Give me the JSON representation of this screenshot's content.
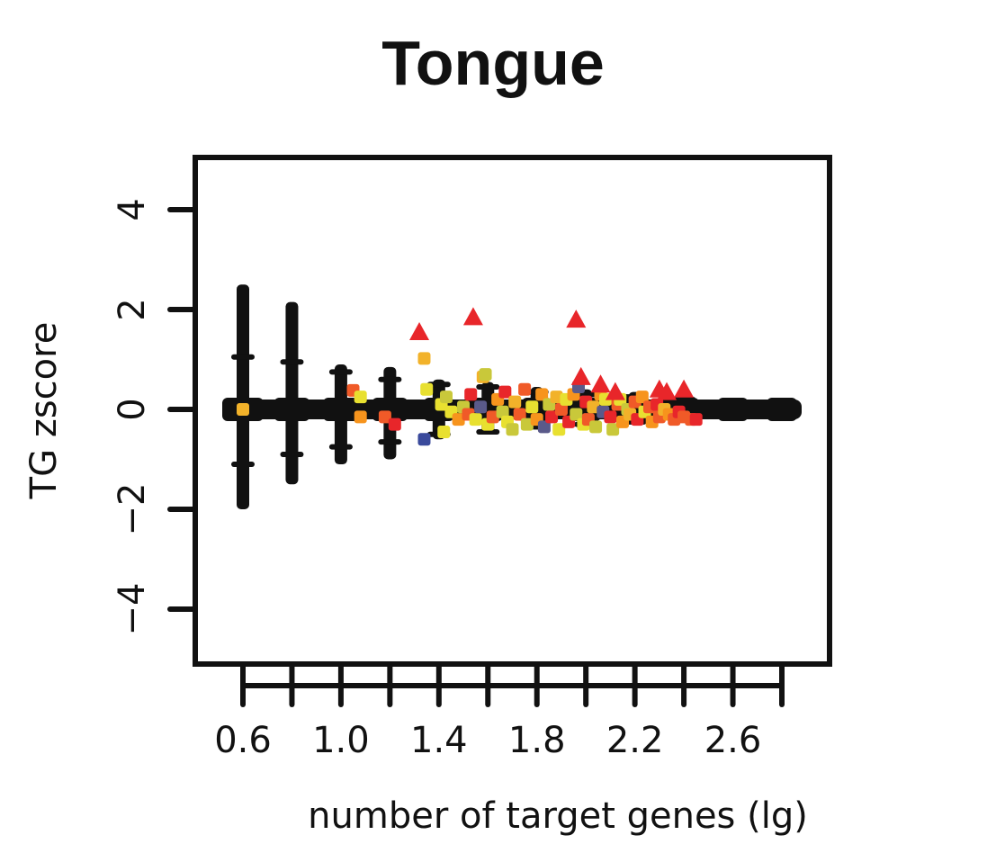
{
  "chart_data": {
    "type": "scatter",
    "title": "Tongue",
    "xlabel": "number of target genes (lg)",
    "ylabel": "TG zscore",
    "xlim": [
      0.4,
      2.9
    ],
    "ylim": [
      -5.2,
      5.2
    ],
    "x_ticks": [
      0.6,
      0.8,
      1.0,
      1.2,
      1.4,
      1.6,
      1.8,
      2.0,
      2.2,
      2.4,
      2.6,
      2.8
    ],
    "x_tick_labels": [
      "0.6",
      "1.0",
      "1.4",
      "1.8",
      "2.2",
      "2.6"
    ],
    "x_tick_label_values": [
      0.6,
      1.0,
      1.4,
      1.8,
      2.2,
      2.6
    ],
    "y_ticks": [
      -4,
      -2,
      0,
      2,
      4
    ],
    "y_tick_labels": [
      "−4",
      "−2",
      "0",
      "2",
      "4"
    ],
    "grid": false,
    "legend": "none",
    "colors": {
      "background": "#000000",
      "triangle": "#e8262a",
      "red": "#e8262a",
      "orange_red": "#f05a28",
      "orange": "#f7941d",
      "gold": "#f2b22a",
      "yellow": "#e8e030",
      "olive": "#c9c83a",
      "navy": "#3a4a9c",
      "slate": "#5a5a8a"
    },
    "background_columns": [
      {
        "x": 0.6,
        "y_min": -2.0,
        "y_max": 2.5,
        "whisker_hi": 1.05,
        "whisker_lo": -1.1
      },
      {
        "x": 0.8,
        "y_min": -1.5,
        "y_max": 2.15,
        "whisker_hi": 0.95,
        "whisker_lo": -0.9
      },
      {
        "x": 1.0,
        "y_min": -1.1,
        "y_max": 0.9,
        "whisker_hi": 0.75,
        "whisker_lo": -0.75
      },
      {
        "x": 1.2,
        "y_min": -1.0,
        "y_max": 0.85,
        "whisker_hi": 0.6,
        "whisker_lo": -0.65
      },
      {
        "x": 1.4,
        "y_min": -0.6,
        "y_max": 0.6,
        "whisker_hi": 0.5,
        "whisker_lo": -0.5
      },
      {
        "x": 1.6,
        "y_min": -0.5,
        "y_max": 0.55,
        "whisker_hi": 0.45,
        "whisker_lo": -0.45
      },
      {
        "x": 1.8,
        "y_min": -0.4,
        "y_max": 0.45,
        "whisker_hi": 0.35,
        "whisker_lo": -0.35
      },
      {
        "x": 2.0,
        "y_min": -0.35,
        "y_max": 0.4,
        "whisker_hi": 0.3,
        "whisker_lo": -0.3
      },
      {
        "x": 2.2,
        "y_min": -0.3,
        "y_max": 0.35,
        "whisker_hi": 0.25,
        "whisker_lo": -0.25
      },
      {
        "x": 2.4,
        "y_min": -0.25,
        "y_max": 0.3,
        "whisker_hi": 0.2,
        "whisker_lo": -0.2
      },
      {
        "x": 2.6,
        "y_min": -0.15,
        "y_max": 0.15,
        "whisker_hi": 0.1,
        "whisker_lo": -0.1
      },
      {
        "x": 2.8,
        "y_min": -0.1,
        "y_max": 0.1,
        "whisker_hi": 0.08,
        "whisker_lo": -0.08
      }
    ],
    "triangles": [
      {
        "x": 1.32,
        "y": 1.55
      },
      {
        "x": 1.54,
        "y": 1.85
      },
      {
        "x": 1.96,
        "y": 1.8
      },
      {
        "x": 1.98,
        "y": 0.65
      },
      {
        "x": 2.06,
        "y": 0.5
      },
      {
        "x": 2.12,
        "y": 0.35
      },
      {
        "x": 2.3,
        "y": 0.4
      },
      {
        "x": 2.33,
        "y": 0.35
      },
      {
        "x": 2.4,
        "y": 0.4
      }
    ],
    "points": [
      {
        "x": 0.6,
        "y": 0.0,
        "c": "gold"
      },
      {
        "x": 1.05,
        "y": 0.38,
        "c": "orange_red"
      },
      {
        "x": 1.08,
        "y": 0.25,
        "c": "yellow"
      },
      {
        "x": 1.08,
        "y": -0.15,
        "c": "orange"
      },
      {
        "x": 1.18,
        "y": -0.15,
        "c": "orange_red"
      },
      {
        "x": 1.22,
        "y": -0.3,
        "c": "red"
      },
      {
        "x": 1.34,
        "y": 1.02,
        "c": "gold"
      },
      {
        "x": 1.35,
        "y": 0.4,
        "c": "yellow"
      },
      {
        "x": 1.34,
        "y": -0.6,
        "c": "navy"
      },
      {
        "x": 1.41,
        "y": 0.1,
        "c": "yellow"
      },
      {
        "x": 1.43,
        "y": 0.25,
        "c": "olive"
      },
      {
        "x": 1.42,
        "y": -0.45,
        "c": "yellow"
      },
      {
        "x": 1.45,
        "y": -0.05,
        "c": "yellow"
      },
      {
        "x": 1.48,
        "y": -0.2,
        "c": "orange"
      },
      {
        "x": 1.5,
        "y": 0.05,
        "c": "olive"
      },
      {
        "x": 1.52,
        "y": -0.1,
        "c": "orange_red"
      },
      {
        "x": 1.53,
        "y": 0.3,
        "c": "red"
      },
      {
        "x": 1.55,
        "y": -0.2,
        "c": "yellow"
      },
      {
        "x": 1.57,
        "y": 0.05,
        "c": "slate"
      },
      {
        "x": 1.58,
        "y": 0.65,
        "c": "gold"
      },
      {
        "x": 1.59,
        "y": 0.7,
        "c": "olive"
      },
      {
        "x": 1.6,
        "y": -0.3,
        "c": "yellow"
      },
      {
        "x": 1.62,
        "y": -0.15,
        "c": "orange_red"
      },
      {
        "x": 1.64,
        "y": 0.2,
        "c": "orange"
      },
      {
        "x": 1.66,
        "y": -0.05,
        "c": "olive"
      },
      {
        "x": 1.67,
        "y": 0.35,
        "c": "red"
      },
      {
        "x": 1.68,
        "y": -0.25,
        "c": "yellow"
      },
      {
        "x": 1.7,
        "y": -0.4,
        "c": "olive"
      },
      {
        "x": 1.71,
        "y": 0.15,
        "c": "gold"
      },
      {
        "x": 1.73,
        "y": -0.1,
        "c": "orange_red"
      },
      {
        "x": 1.75,
        "y": 0.4,
        "c": "orange_red"
      },
      {
        "x": 1.76,
        "y": -0.3,
        "c": "olive"
      },
      {
        "x": 1.78,
        "y": 0.05,
        "c": "yellow"
      },
      {
        "x": 1.8,
        "y": -0.2,
        "c": "orange"
      },
      {
        "x": 1.82,
        "y": 0.3,
        "c": "orange"
      },
      {
        "x": 1.83,
        "y": -0.35,
        "c": "slate"
      },
      {
        "x": 1.85,
        "y": 0.1,
        "c": "olive"
      },
      {
        "x": 1.86,
        "y": -0.15,
        "c": "red"
      },
      {
        "x": 1.88,
        "y": 0.25,
        "c": "gold"
      },
      {
        "x": 1.89,
        "y": -0.4,
        "c": "yellow"
      },
      {
        "x": 1.9,
        "y": 0.0,
        "c": "orange_red"
      },
      {
        "x": 1.92,
        "y": 0.2,
        "c": "yellow"
      },
      {
        "x": 1.93,
        "y": -0.25,
        "c": "red"
      },
      {
        "x": 1.95,
        "y": 0.3,
        "c": "orange"
      },
      {
        "x": 1.96,
        "y": -0.1,
        "c": "olive"
      },
      {
        "x": 1.97,
        "y": 0.45,
        "c": "slate"
      },
      {
        "x": 1.99,
        "y": -0.3,
        "c": "yellow"
      },
      {
        "x": 2.0,
        "y": 0.15,
        "c": "red"
      },
      {
        "x": 2.01,
        "y": -0.2,
        "c": "orange_red"
      },
      {
        "x": 2.03,
        "y": 0.05,
        "c": "gold"
      },
      {
        "x": 2.04,
        "y": -0.35,
        "c": "olive"
      },
      {
        "x": 2.06,
        "y": 0.3,
        "c": "orange"
      },
      {
        "x": 2.07,
        "y": -0.05,
        "c": "slate"
      },
      {
        "x": 2.08,
        "y": 0.2,
        "c": "yellow"
      },
      {
        "x": 2.1,
        "y": -0.15,
        "c": "red"
      },
      {
        "x": 2.11,
        "y": -0.4,
        "c": "olive"
      },
      {
        "x": 2.13,
        "y": 0.1,
        "c": "orange_red"
      },
      {
        "x": 2.14,
        "y": 0.2,
        "c": "yellow"
      },
      {
        "x": 2.15,
        "y": -0.25,
        "c": "orange"
      },
      {
        "x": 2.17,
        "y": 0.0,
        "c": "olive"
      },
      {
        "x": 2.18,
        "y": -0.1,
        "c": "gold"
      },
      {
        "x": 2.2,
        "y": 0.15,
        "c": "orange_red"
      },
      {
        "x": 2.21,
        "y": -0.2,
        "c": "red"
      },
      {
        "x": 2.23,
        "y": 0.25,
        "c": "orange"
      },
      {
        "x": 2.24,
        "y": -0.05,
        "c": "yellow"
      },
      {
        "x": 2.26,
        "y": 0.05,
        "c": "orange_red"
      },
      {
        "x": 2.27,
        "y": -0.25,
        "c": "orange"
      },
      {
        "x": 2.29,
        "y": 0.1,
        "c": "red"
      },
      {
        "x": 2.3,
        "y": -0.15,
        "c": "orange_red"
      },
      {
        "x": 2.32,
        "y": 0.0,
        "c": "gold"
      },
      {
        "x": 2.34,
        "y": -0.1,
        "c": "orange"
      },
      {
        "x": 2.36,
        "y": -0.2,
        "c": "orange_red"
      },
      {
        "x": 2.38,
        "y": -0.05,
        "c": "red"
      },
      {
        "x": 2.4,
        "y": -0.15,
        "c": "orange_red"
      },
      {
        "x": 2.43,
        "y": -0.2,
        "c": "orange_red"
      },
      {
        "x": 2.45,
        "y": -0.2,
        "c": "red"
      }
    ]
  }
}
